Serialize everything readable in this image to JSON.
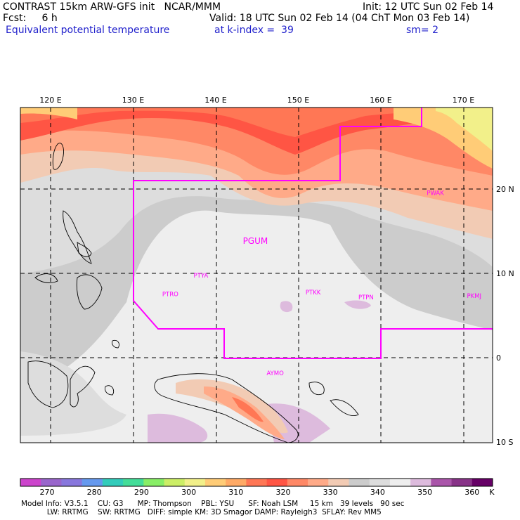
{
  "header": {
    "line1_left": "CONTRAST 15km ARW-GFS init   NCAR/MMM",
    "line1_right": "Init: 12 UTC Sun 02 Feb 14",
    "line2_left": "Fcst:     6 h",
    "line2_right": "Valid: 18 UTC Sun 02 Feb 14 (04 ChT Mon 03 Feb 14)",
    "line3_left": "Equivalent potential temperature",
    "line3_mid": "at k-index =  39",
    "line3_right": "sm= 2"
  },
  "axes": {
    "lon_labels": [
      "120 E",
      "130 E",
      "140 E",
      "150 E",
      "160 E",
      "170 E"
    ],
    "lon_values": [
      120,
      130,
      140,
      150,
      160,
      170
    ],
    "lat_labels": [
      "20 N",
      "10 N",
      "0",
      "10 S"
    ],
    "lat_values": [
      20,
      10,
      0,
      -10
    ]
  },
  "stations": [
    {
      "name": "PGUM",
      "lon": 144.8,
      "lat": 13.5,
      "large": true
    },
    {
      "name": "PTYA",
      "lon": 138.2,
      "lat": 9.5
    },
    {
      "name": "PTRO",
      "lon": 134.5,
      "lat": 7.3
    },
    {
      "name": "PTKK",
      "lon": 151.8,
      "lat": 7.5
    },
    {
      "name": "PTPN",
      "lon": 158.2,
      "lat": 6.9
    },
    {
      "name": "PKMJ",
      "lon": 171.3,
      "lat": 7.1
    },
    {
      "name": "PWAK",
      "lon": 166.6,
      "lat": 19.3
    },
    {
      "name": "AYMO",
      "lon": 147.2,
      "lat": -2.1
    }
  ],
  "colorbar": {
    "labels": [
      "270",
      "280",
      "290",
      "300",
      "310",
      "320",
      "330",
      "340",
      "350",
      "360"
    ],
    "unit": "K",
    "colors": [
      "#cc44cc",
      "#9966cc",
      "#8877dd",
      "#6699ee",
      "#33ccbb",
      "#44dd99",
      "#88ee66",
      "#ccee66",
      "#f2f08a",
      "#ffcc77",
      "#ffaa66",
      "#ff7755",
      "#ff5544",
      "#ff8866",
      "#ffaa88",
      "#f2cbb4",
      "#cccccc",
      "#dddddd",
      "#eeeeee",
      "#ddbbdd",
      "#aa55aa",
      "#883388",
      "#660066"
    ]
  },
  "footer": {
    "line1": "Model Info: V3.5.1    CU: G3      MP: Thompson    PBL: YSU      SF: Noah LSM     15 km   39 levels   90 sec",
    "line2": "           LW: RRTMG    SW: RRTMG   DIFF: simple KM: 3D Smagor DAMP: Rayleigh3  SFLAY: Rev MM5"
  }
}
